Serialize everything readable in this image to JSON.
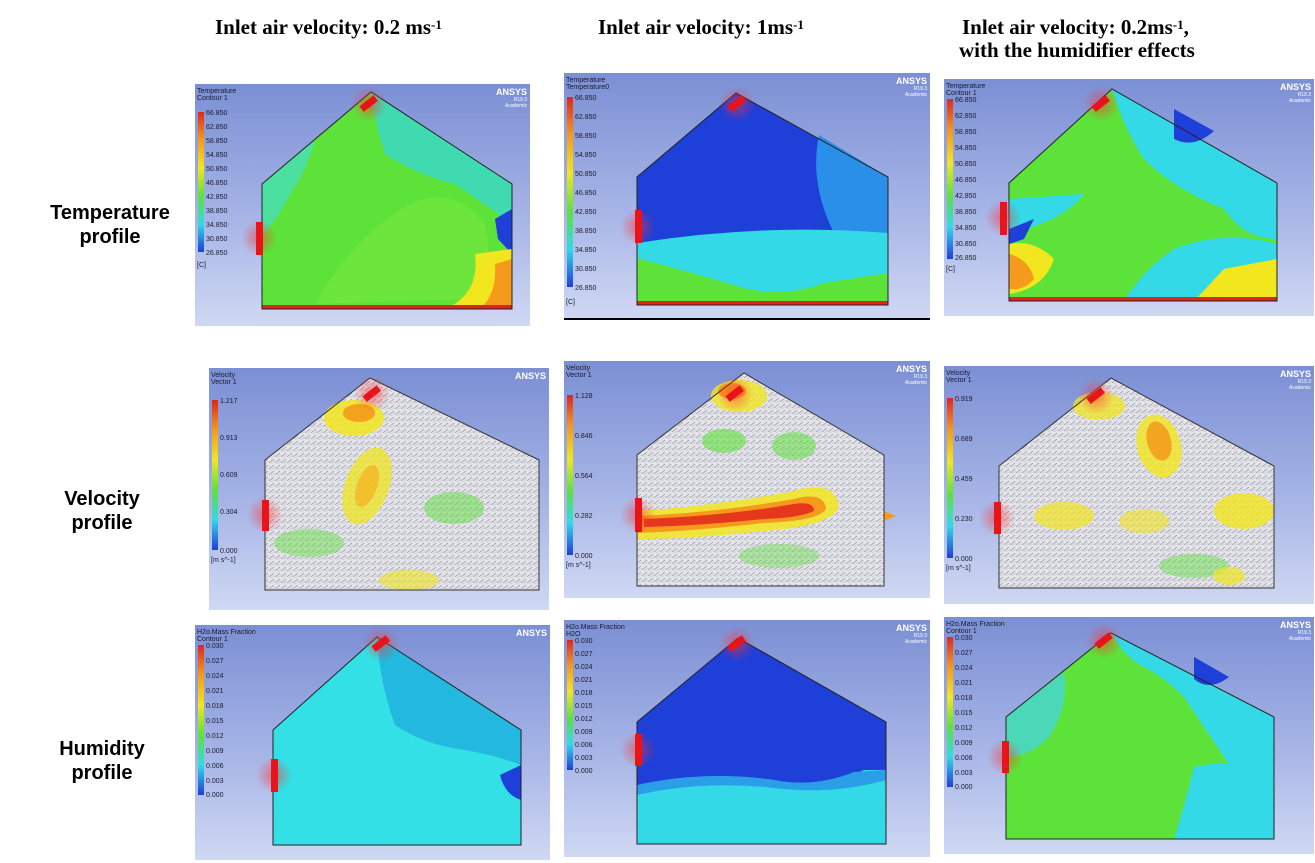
{
  "columns": [
    {
      "line1": "Inlet air velocity: 0.2 ms",
      "sup1": "-1",
      "line2": "",
      "sup2": ""
    },
    {
      "line1": "Inlet air velocity: 1ms",
      "sup1": "-1",
      "line2": "",
      "sup2": ""
    },
    {
      "line1": "Inlet air velocity: 0.2ms",
      "sup1": "-1",
      "line2": ",",
      "line3": "with the humidifier effects"
    }
  ],
  "rows": [
    {
      "line1": "Temperature",
      "line2": "profile"
    },
    {
      "line1": "Velocity",
      "line2": "profile"
    },
    {
      "line1": "Humidity",
      "line2": "profile"
    }
  ],
  "brand": "ANSYS",
  "brand_sub1": "R19.3",
  "brand_sub2": "Academic",
  "legends": {
    "temperature": {
      "title_a": "Temperature",
      "title_b": "Contour 1",
      "title_b_alt": "Temperature0",
      "ticks": [
        "66.850",
        "62.850",
        "58.850",
        "54.850",
        "50.850",
        "46.850",
        "42.850",
        "38.850",
        "34.850",
        "30.850",
        "26.850"
      ],
      "unit": "[C]"
    },
    "velocity": [
      {
        "title_a": "Velocity",
        "title_b": "Vector 1",
        "ticks": [
          "1.217",
          "0.913",
          "0.609",
          "0.304",
          "0.000"
        ],
        "unit": "[m s^-1]"
      },
      {
        "title_a": "Velocity",
        "title_b": "Vector 1",
        "ticks": [
          "1.128",
          "0.846",
          "0.564",
          "0.282",
          "0.000"
        ],
        "unit": "[m s^-1]"
      },
      {
        "title_a": "Velocity",
        "title_b": "Vector 1",
        "ticks": [
          "0.919",
          "0.689",
          "0.459",
          "0.230",
          "0.000"
        ],
        "unit": "[m s^-1]"
      }
    ],
    "humidity": {
      "title_a": "H2o.Mass Fraction",
      "title_b": "Contour 1",
      "title_b_alt": "H2O",
      "ticks": [
        "0.030",
        "0.027",
        "0.024",
        "0.021",
        "0.018",
        "0.015",
        "0.012",
        "0.009",
        "0.006",
        "0.003",
        "0.000"
      ]
    }
  },
  "colors": {
    "inlet": "#e8141a",
    "cold": "#1e3fd8",
    "cyan": "#33d9e6",
    "green": "#5de23a",
    "yellow": "#f2e61f",
    "orange": "#f59a1c",
    "red": "#e0261c"
  }
}
